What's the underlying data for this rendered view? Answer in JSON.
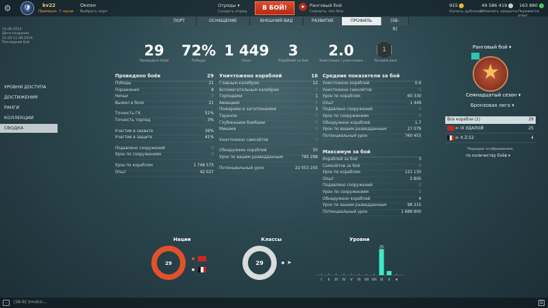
{
  "topbar": {
    "clan_tag": "🛡",
    "user_name": "kv22",
    "user_sub": "Премиум: 7 часов",
    "mode_name": "Океан",
    "mode_sub": "Выбрать порт",
    "squad_label": "Отряды",
    "squad_sub": "Создать отряд",
    "battle_label": "В БОЙ!",
    "rank_mode_label": "Ранговый бой",
    "rank_mode_sub": "Сменить тип боя",
    "doubloons": "915",
    "doubloons_sub": "Купить дублоны",
    "credits": "49 586 419",
    "credits_sub": "Обменять кредиты",
    "free_xp": "163 880",
    "free_xp_sub": "Перевести опыт"
  },
  "nav": {
    "tabs": [
      "ПОРТ",
      "ОСНАЩЕНИЕ",
      "ВНЕШНИЙ ВИД",
      "РАЗВИТИЕ",
      "ПРОФИЛЬ",
      "[SB-B]"
    ],
    "active": "ПРОФИЛЬ"
  },
  "left_info": [
    "19.08.2015",
    "Дата создания",
    "15:29 11.08.2024",
    "Последний бой"
  ],
  "menu": [
    "УРОВНИ ДОСТУПА",
    "ДОСТИЖЕНИЯ",
    "РАНГИ",
    "КОЛЛЕКЦИИ",
    "СВОДКА"
  ],
  "menu_active": "СВОДКА",
  "summary": [
    {
      "value": "29",
      "label": "Проведено боёв"
    },
    {
      "value": "72%",
      "label": "Победы"
    },
    {
      "value": "1 449",
      "label": "Опыт"
    },
    {
      "value": "3",
      "label": "Кораблей за бой"
    },
    {
      "value": "2.0",
      "label": "Уничтожил / уничтожен"
    }
  ],
  "best_rank": {
    "value": "1",
    "label": "Лучший ранг"
  },
  "battles": {
    "title": "Проведено боёв",
    "total": "29",
    "groups": [
      [
        [
          "Победы",
          "21"
        ],
        [
          "Поражения",
          "8"
        ],
        [
          "Ничьи",
          "0"
        ],
        [
          "Выжил в боях",
          "21"
        ]
      ],
      [
        [
          "Точность ГК",
          "51%"
        ],
        [
          "Точность торпед",
          "3%"
        ]
      ],
      [
        [
          "Участие в захвате",
          "39%"
        ],
        [
          "Участие в защите",
          "41%"
        ]
      ],
      [
        [
          "Подавлено сооружений",
          "0"
        ],
        [
          "Урон по сооружениям",
          "0"
        ]
      ],
      [
        [
          "Урон по кораблям",
          "1 749 575"
        ],
        [
          "Опыт",
          "42 027"
        ]
      ]
    ]
  },
  "destroyed": {
    "title": "Уничтожено кораблей",
    "total": "16",
    "groups": [
      [
        [
          "Главным калибром",
          "12"
        ],
        [
          "Вспомогательным калибром",
          "0"
        ],
        [
          "Торпедами",
          "1"
        ],
        [
          "Авиацией",
          "0"
        ],
        [
          "Пожарами и затоплениями",
          "3"
        ],
        [
          "Тараном",
          "0"
        ],
        [
          "Глубинными бомбами",
          "0"
        ],
        [
          "Минами",
          "0"
        ]
      ],
      [
        [
          "Уничтожено самолётов",
          "0"
        ]
      ],
      [
        [
          "Обнаружено кораблей",
          "50"
        ],
        [
          "Урон по вашим разведданным",
          "785 288"
        ]
      ],
      [
        [
          "Потенциальный урон",
          "22 053 205"
        ]
      ]
    ]
  },
  "averages": {
    "title": "Средние показатели за бой",
    "rows": [
      [
        "Уничтожено кораблей",
        "0.6"
      ],
      [
        "Уничтожено самолётов",
        "0"
      ],
      [
        "Урон по кораблям",
        "60 330"
      ],
      [
        "Опыт",
        "1 449"
      ],
      [
        "Подавлено сооружений",
        "0"
      ],
      [
        "Урон по сооружениям",
        "0"
      ],
      [
        "Обнаружено кораблей",
        "1.7"
      ],
      [
        "Урон по вашим разведданным",
        "27 079"
      ],
      [
        "Потенциальный урон",
        "760 455"
      ]
    ]
  },
  "maximum": {
    "title": "Максимум за бой",
    "rows": [
      [
        "Кораблей за бой",
        "3"
      ],
      [
        "Самолётов за бой",
        "0"
      ],
      [
        "Урон по кораблям",
        "121 130"
      ],
      [
        "Опыт",
        "2 805"
      ],
      [
        "Подавлено сооружений",
        "0"
      ],
      [
        "Урон по сооружениям",
        "0"
      ],
      [
        "Обнаружено кораблей",
        "4"
      ],
      [
        "Урон по вашим разведданным",
        "98 215"
      ],
      [
        "Потенциальный урон",
        "1 688 800"
      ]
    ]
  },
  "right_panel": {
    "rank_battle": "Ранговый бой",
    "season": "Семнадцатый сезон",
    "league": "Бронзовая лига",
    "ships_header": "Все корабли (2)",
    "ships_total": "29",
    "ships": [
      {
        "name": "IX УДАЛОЙ",
        "battles": "25",
        "flag": "ussr"
      },
      {
        "name": "X Z-52",
        "battles": "4",
        "flag": "ger"
      }
    ],
    "sort_label": "Порядок отображения:",
    "sort_value": "по количеству боёв"
  },
  "nations": {
    "title": "Нации",
    "total": "29"
  },
  "classes": {
    "title": "Классы",
    "total": "29"
  },
  "chat": {
    "label": "[SB-B] Smokin..."
  },
  "chart_data": {
    "type": "bar",
    "title": "Уровни",
    "categories": [
      "I",
      "II",
      "III",
      "IV",
      "V",
      "VI",
      "VII",
      "VIII",
      "IX",
      "X",
      "★"
    ],
    "values": [
      0,
      0,
      0,
      0,
      0,
      0,
      0,
      0,
      25,
      4,
      0
    ],
    "labels": [
      "",
      "",
      "",
      "",
      "",
      "",
      "",
      "",
      "25",
      "",
      ""
    ]
  },
  "nation_split": [
    25,
    4
  ],
  "colors": {
    "accent": "#e0482a",
    "bar": "#3ee8c8",
    "donut_nations": "#e3512a",
    "donut_classes": "#d8dcdc"
  }
}
